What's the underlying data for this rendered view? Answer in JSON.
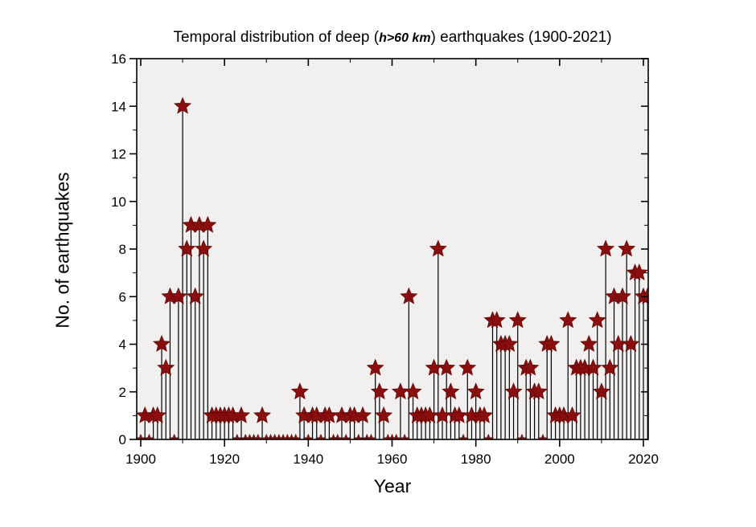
{
  "title": {
    "part1": "Temporal distribution of deep (",
    "part2": "h>60 km",
    "part3": ") earthquakes (1900-2021)"
  },
  "chart_data": {
    "type": "stem",
    "title": "Temporal distribution of deep (h>60 km) earthquakes (1900-2021)",
    "xlabel": "Year",
    "ylabel": "No. of earthquakes",
    "start_year": 1900,
    "end_year": 2021,
    "values": [
      0,
      1,
      0,
      1,
      1,
      4,
      3,
      6,
      0,
      6,
      14,
      8,
      9,
      6,
      9,
      8,
      9,
      1,
      1,
      1,
      1,
      1,
      1,
      0,
      1,
      0,
      0,
      0,
      0,
      1,
      0,
      0,
      0,
      0,
      0,
      0,
      0,
      0,
      2,
      1,
      0,
      1,
      1,
      0,
      1,
      1,
      0,
      0,
      1,
      0,
      1,
      1,
      0,
      1,
      0,
      0,
      3,
      2,
      1,
      0,
      0,
      0,
      2,
      0,
      6,
      2,
      1,
      1,
      1,
      1,
      3,
      8,
      1,
      3,
      2,
      1,
      1,
      0,
      3,
      1,
      2,
      1,
      1,
      0,
      5,
      5,
      4,
      4,
      4,
      2,
      5,
      0,
      3,
      3,
      2,
      2,
      0,
      4,
      4,
      1,
      1,
      1,
      5,
      1,
      3,
      3,
      3,
      4,
      3,
      5,
      2,
      8,
      3,
      6,
      4,
      6,
      8,
      4,
      7,
      7,
      6,
      6
    ],
    "xticks_major": [
      1900,
      1920,
      1940,
      1960,
      1980,
      2000,
      2020
    ],
    "xticks_minor_step": 10,
    "yticks_major": [
      0,
      2,
      4,
      6,
      8,
      10,
      12,
      14,
      16
    ],
    "yticks_minor_step": 1,
    "ylim": [
      0,
      16
    ],
    "xlim": [
      1899,
      2021.2
    ],
    "legend": "none",
    "grid": "off",
    "marker": "star",
    "colors": {
      "star_fill": "#8B0E0E",
      "star_edge": "#5a0000",
      "stem": "#000000",
      "frame": "#000000",
      "plot_background": "#F1F0EF",
      "page_background": "#ffffff",
      "text": "#000000"
    }
  }
}
